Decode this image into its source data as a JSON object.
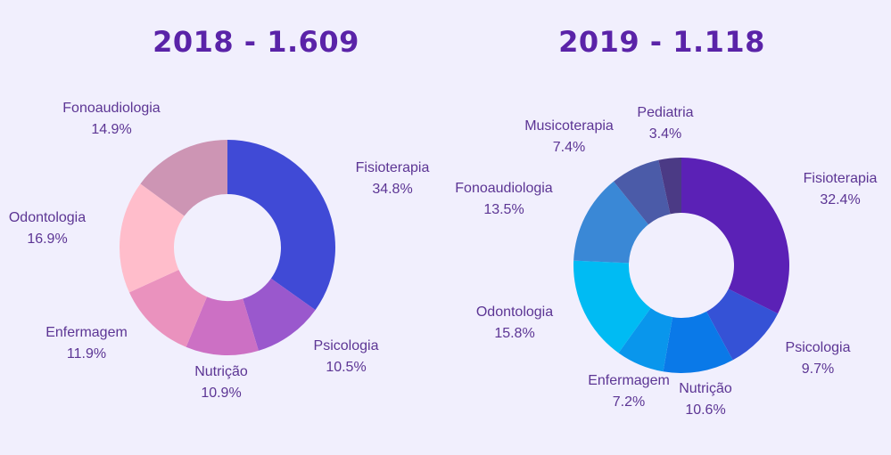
{
  "chart_data": [
    {
      "type": "pie",
      "title": "2018 - 1.609",
      "categories": [
        "Fisioterapia",
        "Psicologia",
        "Nutrição",
        "Enfermagem",
        "Odontologia",
        "Fonoaudiologia"
      ],
      "values": [
        34.8,
        10.5,
        10.9,
        11.9,
        16.9,
        14.9
      ],
      "value_labels": [
        "34.8%",
        "10.5%",
        "10.9%",
        "11.9%",
        "16.9%",
        "14.9%"
      ],
      "colors": [
        "#404ad6",
        "#9a58cd",
        "#cc70c4",
        "#ea92be",
        "#ffbdcb",
        "#cd95b4"
      ],
      "donut": true,
      "start_angle": "12 o'clock",
      "direction": "clockwise"
    },
    {
      "type": "pie",
      "title": "2019 - 1.118",
      "categories": [
        "Fisioterapia",
        "Psicologia",
        "Nutrição",
        "Enfermagem",
        "Odontologia",
        "Fonoaudiologia",
        "Musicoterapia",
        "Pediatria"
      ],
      "values": [
        32.4,
        9.7,
        10.6,
        7.2,
        15.8,
        13.5,
        7.4,
        3.4
      ],
      "value_labels": [
        "32.4%",
        "9.7%",
        "10.6%",
        "7.2%",
        "15.8%",
        "13.5%",
        "7.4%",
        "3.4%"
      ],
      "colors": [
        "#5b21b6",
        "#3552d6",
        "#0a79e8",
        "#0996ec",
        "#00bbf3",
        "#3a88d6",
        "#4b5ba8",
        "#4b3a85"
      ],
      "donut": true,
      "start_angle": "12 o'clock",
      "direction": "clockwise"
    }
  ]
}
